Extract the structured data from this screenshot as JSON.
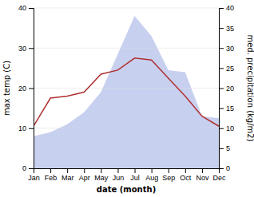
{
  "chart_data": {
    "type": "line",
    "xlabel": "date (month)",
    "ylabel": "max temp (C)",
    "y2label": "med. precipitation (kg/m2)",
    "categories": [
      "Jan",
      "Feb",
      "Mar",
      "Apr",
      "May",
      "Jun",
      "Jul",
      "Aug",
      "Sep",
      "Oct",
      "Nov",
      "Dec"
    ],
    "series": [
      {
        "type": "area",
        "axis": "y2",
        "color": "#c8d0f0",
        "values": [
          8.0,
          9.0,
          11.0,
          14.0,
          19.0,
          28.5,
          38.0,
          33.0,
          24.5,
          24.0,
          13.0,
          12.5
        ]
      },
      {
        "type": "line",
        "color": "#b03030",
        "values": [
          10.5,
          17.5,
          18.0,
          19.0,
          23.5,
          24.5,
          27.5,
          27.0,
          22.5,
          18.0,
          13.0,
          10.5
        ]
      }
    ],
    "ylim": [
      0,
      40
    ],
    "yticks": [
      0,
      10,
      20,
      30,
      40
    ],
    "y2lim": [
      0,
      40
    ],
    "y2ticks": [
      0,
      5,
      10,
      15,
      20,
      25,
      30,
      35,
      40
    ],
    "grid": true
  }
}
